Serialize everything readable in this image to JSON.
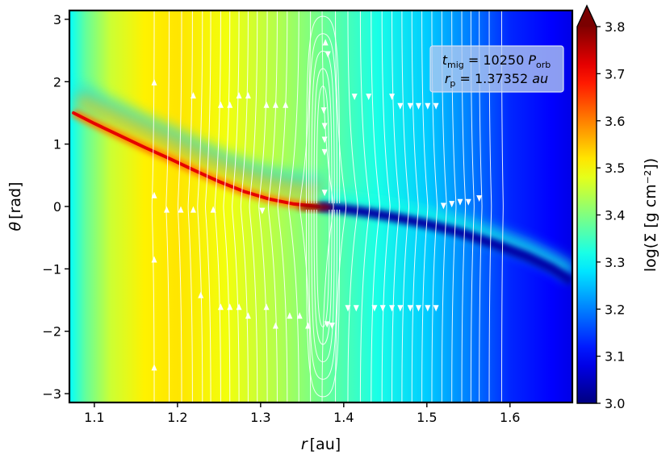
{
  "chart_data": {
    "type": "heatmap",
    "title": "",
    "xlabel": "r [au]",
    "xlabel_parts": {
      "symbol": "r",
      "unit": "[au]"
    },
    "ylabel": "θ [rad]",
    "ylabel_parts": {
      "symbol": "θ",
      "unit": "[rad]"
    },
    "xlim": [
      1.07,
      1.675
    ],
    "ylim": [
      -3.14159,
      3.14159
    ],
    "x_ticks": [
      1.1,
      1.2,
      1.3,
      1.4,
      1.5,
      1.6
    ],
    "x_tick_labels": [
      "1.1",
      "1.2",
      "1.3",
      "1.4",
      "1.5",
      "1.6"
    ],
    "y_ticks": [
      3,
      2,
      1,
      0,
      -1,
      -2,
      -3
    ],
    "y_tick_labels": [
      "3",
      "2",
      "1",
      "0",
      "−1",
      "−2",
      "−3"
    ],
    "colorbar": {
      "label": "log(Σ [g cm⁻²])",
      "range": [
        3.0,
        3.8
      ],
      "extend": "max",
      "colormap": "jet",
      "ticks": [
        3.0,
        3.1,
        3.2,
        3.3,
        3.4,
        3.5,
        3.6,
        3.7,
        3.8
      ],
      "tick_labels": [
        "3.0",
        "3.1",
        "3.2",
        "3.3",
        "3.4",
        "3.5",
        "3.6",
        "3.7",
        "3.8"
      ]
    },
    "annotation": {
      "line1": {
        "symbol": "t",
        "sub": "mig",
        "eq": " = 10250 ",
        "unit": "P",
        "unit_sub": "orb"
      },
      "line2": {
        "symbol": "r",
        "sub": "p",
        "eq": " = 1.37352 ",
        "unit": "au"
      }
    },
    "planet_position": {
      "r": 1.37352,
      "theta": 0.0
    },
    "background_profile": [
      {
        "r": 1.07,
        "value": 3.3
      },
      {
        "r": 1.09,
        "value": 3.38
      },
      {
        "r": 1.12,
        "value": 3.46
      },
      {
        "r": 1.16,
        "value": 3.51
      },
      {
        "r": 1.2,
        "value": 3.52
      },
      {
        "r": 1.26,
        "value": 3.49
      },
      {
        "r": 1.32,
        "value": 3.44
      },
      {
        "r": 1.38,
        "value": 3.38
      },
      {
        "r": 1.44,
        "value": 3.32
      },
      {
        "r": 1.5,
        "value": 3.26
      },
      {
        "r": 1.55,
        "value": 3.2
      },
      {
        "r": 1.6,
        "value": 3.13
      },
      {
        "r": 1.65,
        "value": 3.1
      },
      {
        "r": 1.675,
        "value": 3.08
      }
    ],
    "inner_spiral_arm": [
      [
        1.075,
        1.5
      ],
      [
        1.1,
        1.33
      ],
      [
        1.13,
        1.14
      ],
      [
        1.16,
        0.95
      ],
      [
        1.19,
        0.77
      ],
      [
        1.22,
        0.58
      ],
      [
        1.25,
        0.4
      ],
      [
        1.28,
        0.24
      ],
      [
        1.31,
        0.12
      ],
      [
        1.34,
        0.04
      ],
      [
        1.37,
        0.0
      ]
    ],
    "outer_spiral_arm": [
      [
        1.37,
        0.0
      ],
      [
        1.4,
        -0.04
      ],
      [
        1.43,
        -0.1
      ],
      [
        1.46,
        -0.17
      ],
      [
        1.5,
        -0.28
      ],
      [
        1.54,
        -0.42
      ],
      [
        1.58,
        -0.6
      ],
      [
        1.62,
        -0.8
      ],
      [
        1.65,
        -0.99
      ],
      [
        1.675,
        -1.2
      ]
    ],
    "series": [
      {
        "name": "inner_spiral_arm",
        "values": [
          1.5,
          1.33,
          1.14,
          0.95,
          0.77,
          0.58,
          0.4,
          0.24,
          0.12,
          0.04,
          0.0
        ]
      },
      {
        "name": "outer_spiral_arm",
        "values": [
          0.0,
          -0.04,
          -0.1,
          -0.17,
          -0.28,
          -0.42,
          -0.6,
          -0.8,
          -0.99,
          -1.2
        ]
      }
    ],
    "streamlines": {
      "r_positions": [
        1.172,
        1.19,
        1.205,
        1.218,
        1.23,
        1.24,
        1.252,
        1.263,
        1.274,
        1.285,
        1.296,
        1.308,
        1.32,
        1.332,
        1.346,
        1.36,
        1.374,
        1.39,
        1.405,
        1.42,
        1.433,
        1.446,
        1.458,
        1.47,
        1.482,
        1.494,
        1.506,
        1.518,
        1.53,
        1.542,
        1.553,
        1.563,
        1.575,
        1.59
      ],
      "flow_inside_planet": "upward",
      "flow_outside_planet": "downward",
      "horseshoe_region": [
        1.355,
        1.395
      ]
    },
    "arrows": [
      {
        "r": 1.172,
        "theta": 1.98,
        "dir": "up"
      },
      {
        "r": 1.172,
        "theta": 0.17,
        "dir": "up"
      },
      {
        "r": 1.172,
        "theta": -0.86,
        "dir": "up"
      },
      {
        "r": 1.172,
        "theta": -2.59,
        "dir": "up"
      },
      {
        "r": 1.187,
        "theta": -0.06,
        "dir": "up"
      },
      {
        "r": 1.204,
        "theta": -0.06,
        "dir": "up"
      },
      {
        "r": 1.219,
        "theta": 1.77,
        "dir": "up"
      },
      {
        "r": 1.219,
        "theta": -0.06,
        "dir": "up"
      },
      {
        "r": 1.228,
        "theta": -1.43,
        "dir": "up"
      },
      {
        "r": 1.243,
        "theta": -0.06,
        "dir": "up"
      },
      {
        "r": 1.252,
        "theta": 1.62,
        "dir": "up"
      },
      {
        "r": 1.252,
        "theta": -1.62,
        "dir": "up"
      },
      {
        "r": 1.263,
        "theta": 1.62,
        "dir": "up"
      },
      {
        "r": 1.263,
        "theta": -1.62,
        "dir": "up"
      },
      {
        "r": 1.274,
        "theta": 1.77,
        "dir": "up"
      },
      {
        "r": 1.274,
        "theta": -1.62,
        "dir": "up"
      },
      {
        "r": 1.285,
        "theta": 1.77,
        "dir": "up"
      },
      {
        "r": 1.285,
        "theta": -1.76,
        "dir": "up"
      },
      {
        "r": 1.307,
        "theta": 1.62,
        "dir": "up"
      },
      {
        "r": 1.307,
        "theta": -1.62,
        "dir": "up"
      },
      {
        "r": 1.318,
        "theta": 1.62,
        "dir": "up"
      },
      {
        "r": 1.318,
        "theta": -1.92,
        "dir": "up"
      },
      {
        "r": 1.33,
        "theta": 1.62,
        "dir": "up"
      },
      {
        "r": 1.335,
        "theta": -1.76,
        "dir": "up"
      },
      {
        "r": 1.347,
        "theta": -1.76,
        "dir": "up"
      },
      {
        "r": 1.357,
        "theta": -1.92,
        "dir": "up"
      },
      {
        "r": 1.302,
        "theta": -0.06,
        "dir": "down"
      },
      {
        "r": 1.378,
        "theta": 2.62,
        "dir": "up"
      },
      {
        "r": 1.381,
        "theta": 2.45,
        "dir": "down"
      },
      {
        "r": 1.376,
        "theta": 1.55,
        "dir": "down"
      },
      {
        "r": 1.377,
        "theta": 1.3,
        "dir": "down"
      },
      {
        "r": 1.377,
        "theta": 1.08,
        "dir": "down"
      },
      {
        "r": 1.377,
        "theta": 0.88,
        "dir": "down"
      },
      {
        "r": 1.377,
        "theta": 0.23,
        "dir": "down"
      },
      {
        "r": 1.38,
        "theta": -1.88,
        "dir": "down"
      },
      {
        "r": 1.386,
        "theta": -1.9,
        "dir": "down"
      },
      {
        "r": 1.405,
        "theta": -1.62,
        "dir": "down"
      },
      {
        "r": 1.413,
        "theta": 1.77,
        "dir": "down"
      },
      {
        "r": 1.415,
        "theta": -1.62,
        "dir": "down"
      },
      {
        "r": 1.43,
        "theta": 1.77,
        "dir": "down"
      },
      {
        "r": 1.437,
        "theta": -1.62,
        "dir": "down"
      },
      {
        "r": 1.447,
        "theta": -1.62,
        "dir": "down"
      },
      {
        "r": 1.458,
        "theta": 1.77,
        "dir": "down"
      },
      {
        "r": 1.458,
        "theta": -1.62,
        "dir": "down"
      },
      {
        "r": 1.468,
        "theta": 1.62,
        "dir": "down"
      },
      {
        "r": 1.468,
        "theta": -1.62,
        "dir": "down"
      },
      {
        "r": 1.48,
        "theta": 1.62,
        "dir": "down"
      },
      {
        "r": 1.48,
        "theta": -1.62,
        "dir": "down"
      },
      {
        "r": 1.49,
        "theta": 1.62,
        "dir": "down"
      },
      {
        "r": 1.49,
        "theta": -1.62,
        "dir": "down"
      },
      {
        "r": 1.501,
        "theta": 1.62,
        "dir": "down"
      },
      {
        "r": 1.501,
        "theta": -1.62,
        "dir": "down"
      },
      {
        "r": 1.511,
        "theta": 1.62,
        "dir": "down"
      },
      {
        "r": 1.511,
        "theta": -1.62,
        "dir": "down"
      },
      {
        "r": 1.52,
        "theta": 0.02,
        "dir": "down"
      },
      {
        "r": 1.53,
        "theta": 0.05,
        "dir": "down"
      },
      {
        "r": 1.54,
        "theta": 0.08,
        "dir": "down"
      },
      {
        "r": 1.55,
        "theta": 0.08,
        "dir": "down"
      },
      {
        "r": 1.563,
        "theta": 0.14,
        "dir": "down"
      }
    ]
  }
}
